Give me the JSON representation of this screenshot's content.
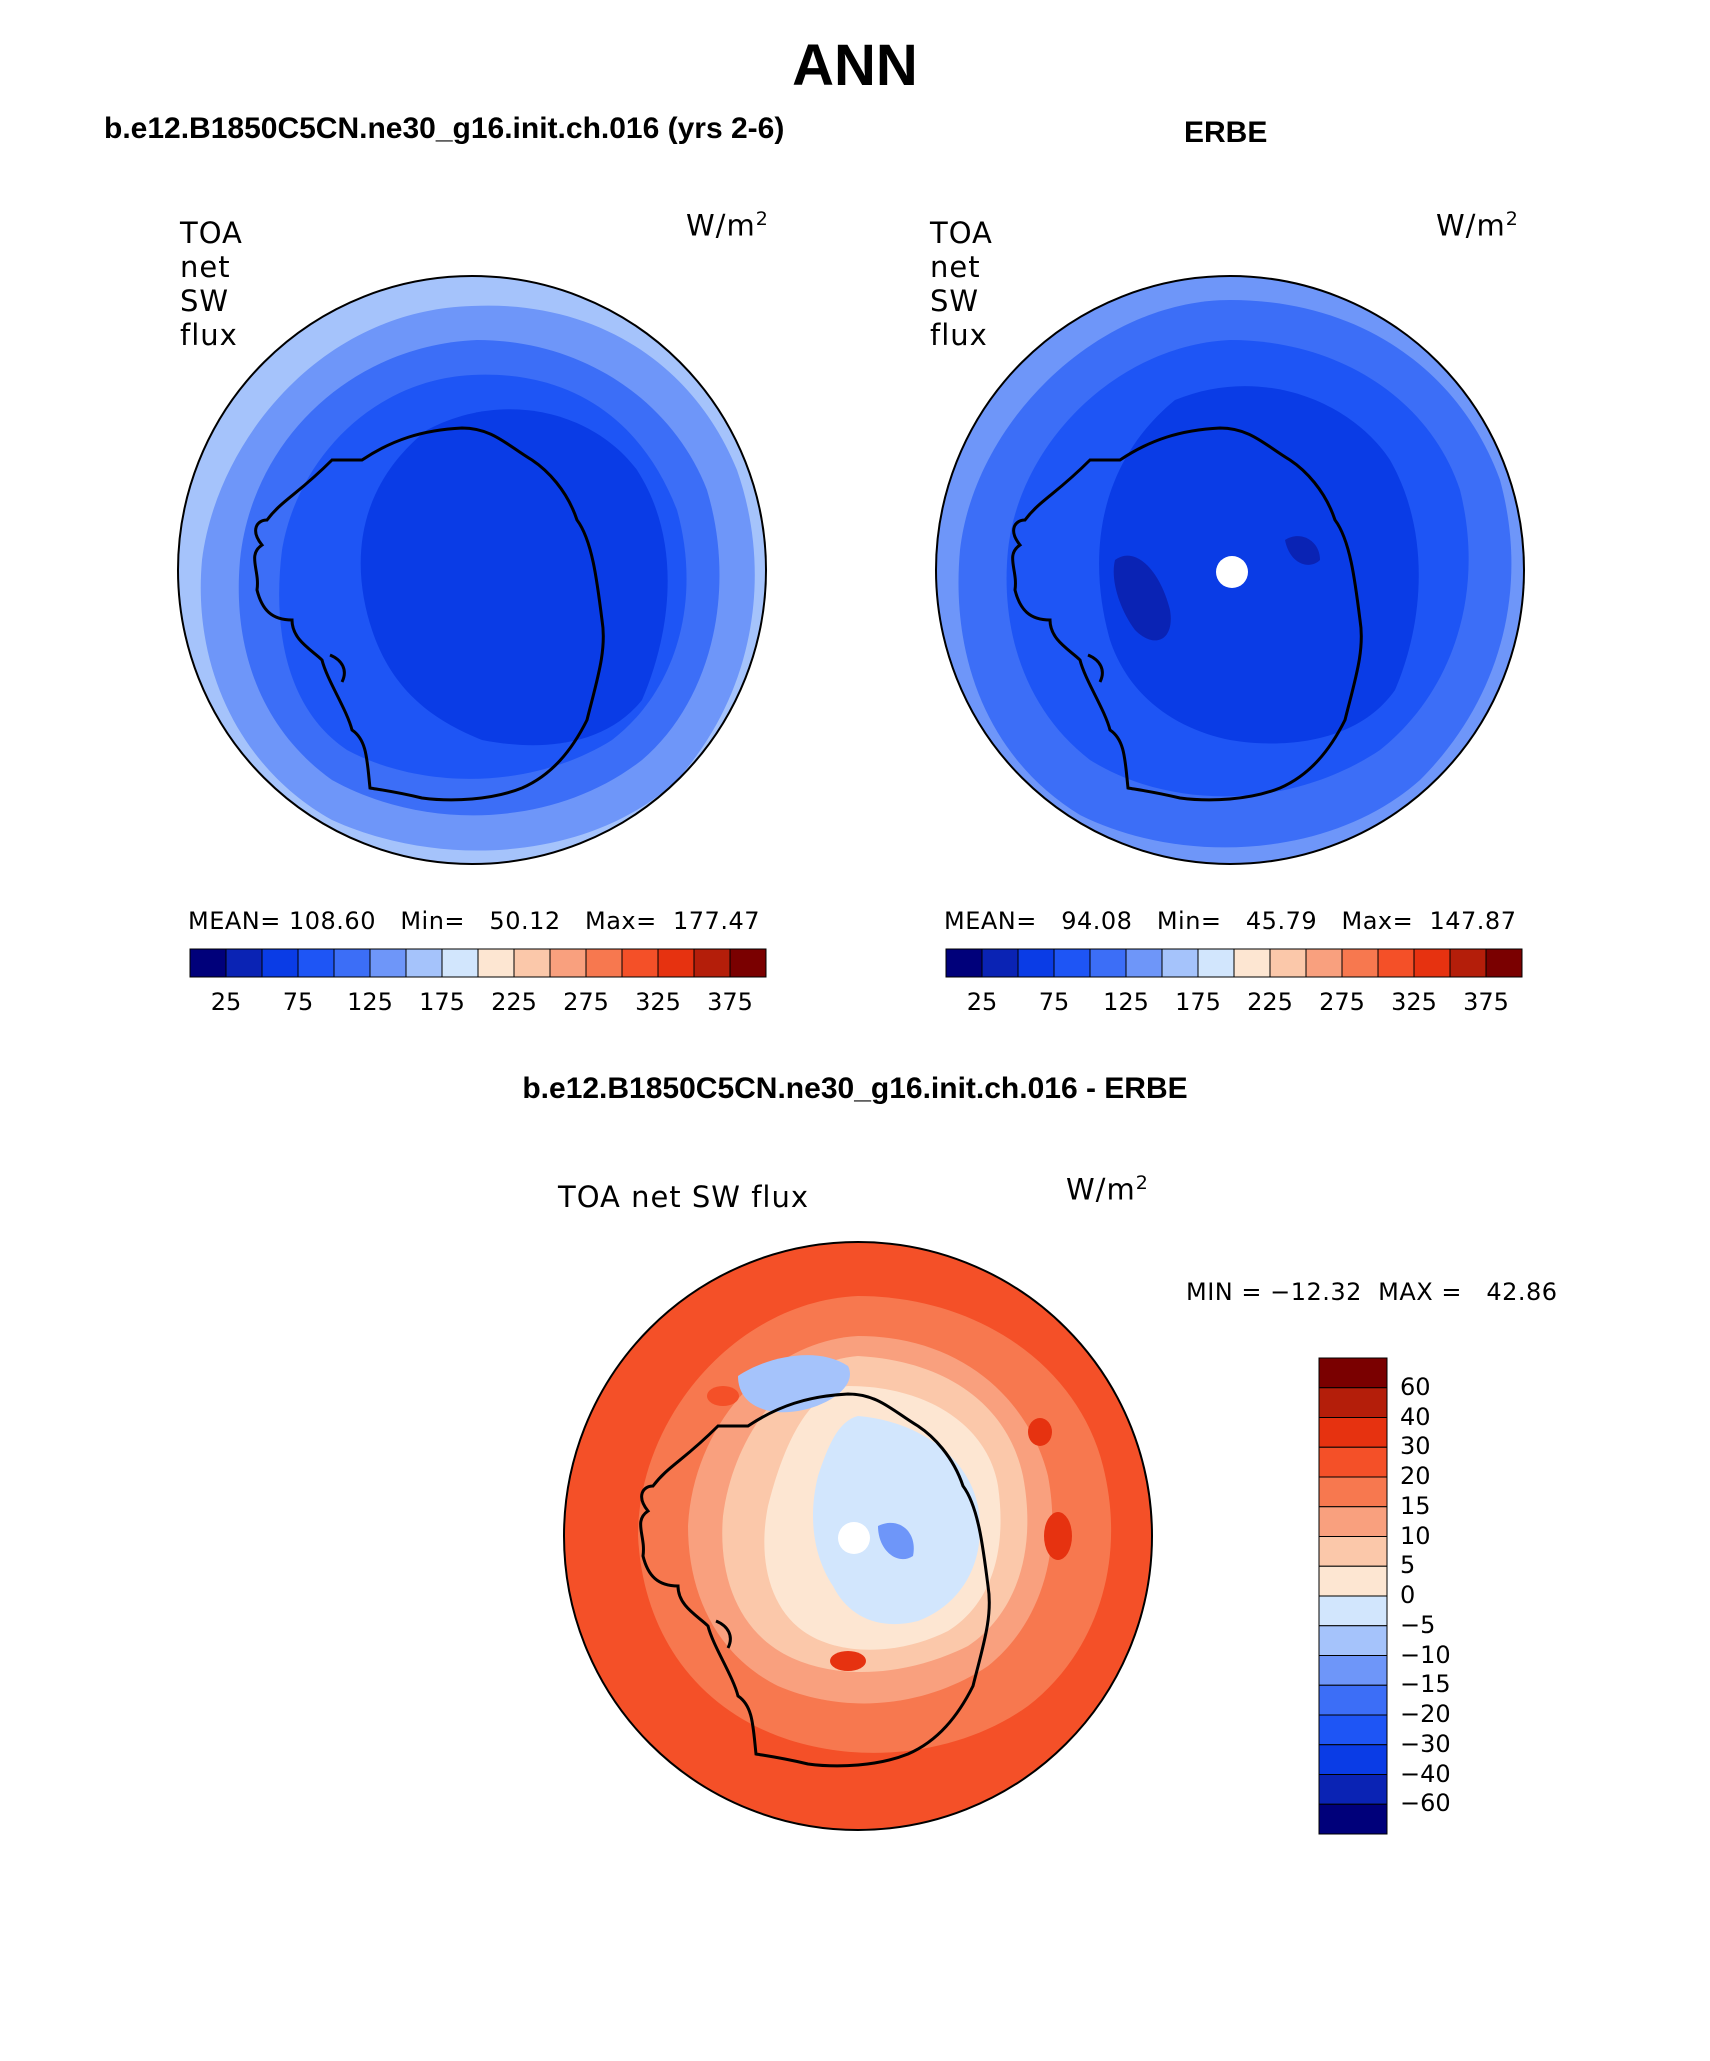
{
  "page": {
    "title": "ANN",
    "left_header": "b.e12.B1850C5CN.ne30_g16.init.ch.016 (yrs 2-6)",
    "right_header": "ERBE",
    "diff_header": "b.e12.B1850C5CN.ne30_g16.init.ch.016 - ERBE"
  },
  "panels": {
    "model": {
      "variable": "TOA net SW flux",
      "units_base": "W/m",
      "units_exp": "2",
      "stats": "MEAN= 108.60   Min=   50.12   Max=  177.47"
    },
    "obs": {
      "variable": "TOA net SW flux",
      "units_base": "W/m",
      "units_exp": "2",
      "stats": "MEAN=   94.08   Min=   45.79   Max=  147.87"
    },
    "diff": {
      "variable": "TOA net SW flux",
      "units_base": "W/m",
      "units_exp": "2",
      "stats": "MIN = −12.32  MAX =   42.86"
    }
  },
  "colorbars": {
    "abs": {
      "colors": [
        "#00007a",
        "#0a23b4",
        "#0a3ce6",
        "#1e55f5",
        "#3c6ef7",
        "#6e96f9",
        "#a5c3fb",
        "#d2e6fd",
        "#fde6d2",
        "#fbc8aa",
        "#f9a07e",
        "#f7784f",
        "#f45028",
        "#e63210",
        "#b41e0a",
        "#7a0000"
      ],
      "ticks": [
        "25",
        "75",
        "125",
        "175",
        "225",
        "275",
        "325",
        "375"
      ]
    },
    "diff": {
      "colors": [
        "#7a0000",
        "#b41e0a",
        "#e63210",
        "#f45028",
        "#f7784f",
        "#f9a07e",
        "#fbc8aa",
        "#fde6d2",
        "#d2e6fd",
        "#a5c3fb",
        "#6e96f9",
        "#3c6ef7",
        "#1e55f5",
        "#0a3ce6",
        "#0a23b4",
        "#00007a"
      ],
      "ticks": [
        "60",
        "40",
        "30",
        "20",
        "15",
        "10",
        "5",
        "0",
        "−5",
        "−10",
        "−15",
        "−20",
        "−30",
        "−40",
        "−60"
      ]
    }
  },
  "chart_data": [
    {
      "type": "heatmap",
      "title": "TOA net SW flux",
      "units": "W/m2",
      "projection": "south polar stereographic",
      "mean": 108.6,
      "min": 50.12,
      "max": 177.47,
      "contour_levels": [
        25,
        50,
        75,
        100,
        125,
        150,
        175,
        200,
        225,
        250,
        275,
        300,
        325,
        350,
        375
      ]
    },
    {
      "type": "heatmap",
      "title": "TOA net SW flux",
      "units": "W/m2",
      "projection": "south polar stereographic",
      "mean": 94.08,
      "min": 45.79,
      "max": 147.87,
      "contour_levels": [
        25,
        50,
        75,
        100,
        125,
        150,
        175,
        200,
        225,
        250,
        275,
        300,
        325,
        350,
        375
      ]
    },
    {
      "type": "heatmap",
      "title": "TOA net SW flux",
      "units": "W/m2",
      "projection": "south polar stereographic",
      "min": -12.32,
      "max": 42.86,
      "contour_levels": [
        -60,
        -40,
        -30,
        -20,
        -15,
        -10,
        -5,
        0,
        5,
        10,
        15,
        20,
        30,
        40,
        60
      ]
    }
  ]
}
